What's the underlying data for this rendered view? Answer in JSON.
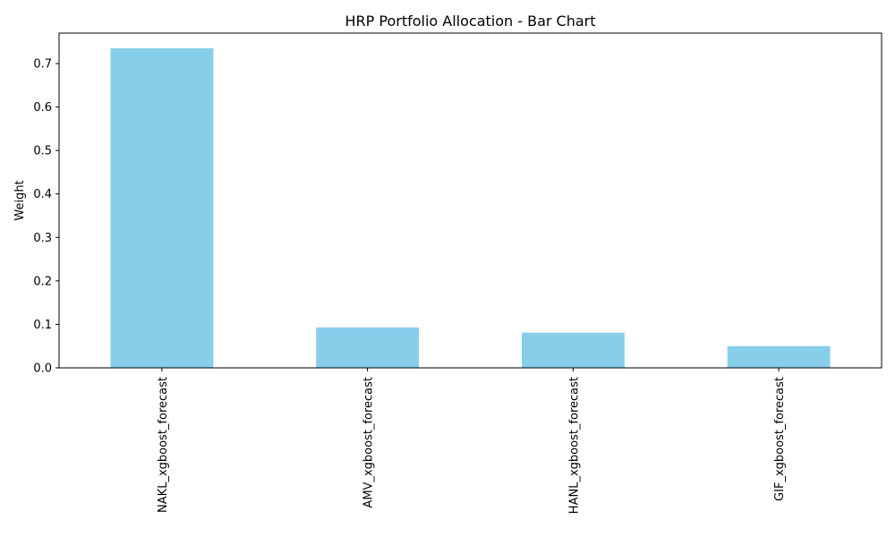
{
  "chart_data": {
    "type": "bar",
    "title": "HRP Portfolio Allocation - Bar Chart",
    "xlabel": "",
    "ylabel": "Weight",
    "categories": [
      "NAKL_xgboost_forecast",
      "AMV_xgboost_forecast",
      "HANL_xgboost_forecast",
      "GIF_xgboost_forecast"
    ],
    "values": [
      0.735,
      0.093,
      0.081,
      0.05
    ],
    "ylim": [
      0,
      0.77
    ],
    "yticks": [
      "0.0",
      "0.1",
      "0.2",
      "0.3",
      "0.4",
      "0.5",
      "0.6",
      "0.7"
    ],
    "grid": false,
    "legend": "none",
    "bar_color": "#87CEEB"
  }
}
